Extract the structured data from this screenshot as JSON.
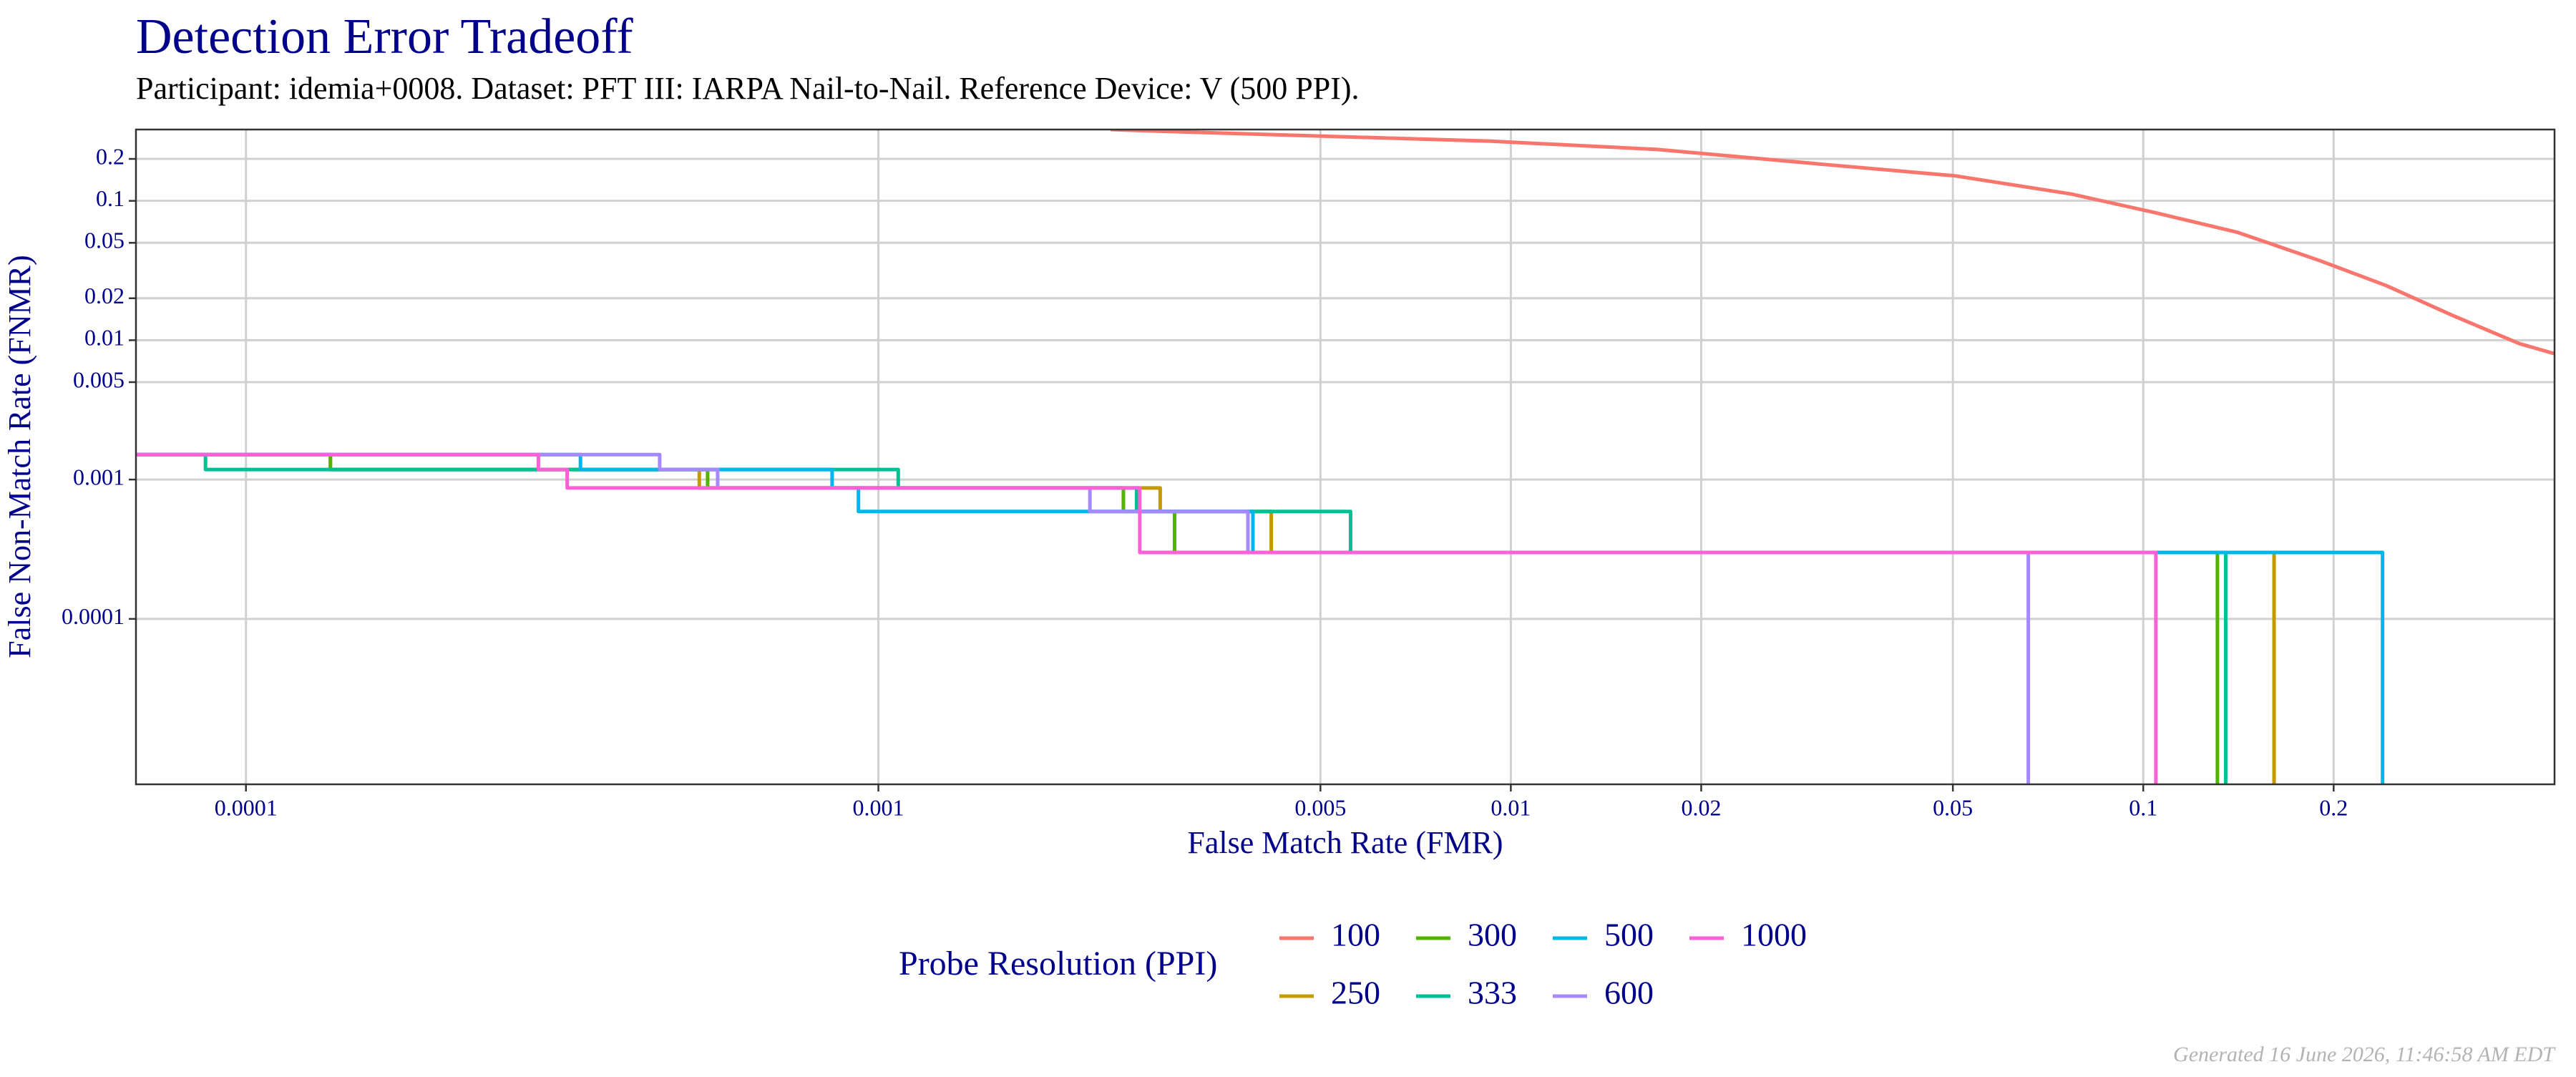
{
  "chart_data": {
    "type": "line",
    "title": "Detection Error Tradeoff",
    "subtitle": "Participant: idemia+0008. Dataset: PFT III: IARPA Nail-to-Nail. Reference Device: V (500 PPI).",
    "x_label": "False Match Rate (FMR)",
    "y_label": "False Non-Match Rate (FNMR)",
    "xscale": "log",
    "yscale": "log",
    "xlim": [
      6.7e-05,
      0.447
    ],
    "ylim": [
      6.5e-06,
      0.325
    ],
    "xticks": [
      0.0001,
      0.001,
      0.005,
      0.01,
      0.02,
      0.05,
      0.1,
      0.2
    ],
    "yticks": [
      0.0001,
      0.001,
      0.005,
      0.01,
      0.02,
      0.05,
      0.1,
      0.2
    ],
    "grid": true,
    "legend_title": "Probe Resolution (PPI)",
    "legend_position": "bottom",
    "footer": "Generated 16 June 2026, 11:46:58 AM EDT",
    "series": [
      {
        "name": "100",
        "color": "#F8766D",
        "x": [
          0.00233,
          0.00279,
          0.0051,
          0.0093,
          0.017,
          0.0311,
          0.0505,
          0.0769,
          0.104,
          0.141,
          0.19,
          0.242,
          0.308,
          0.393,
          0.447
        ],
        "values": [
          0.325,
          0.316,
          0.291,
          0.268,
          0.234,
          0.183,
          0.151,
          0.112,
          0.0826,
          0.0594,
          0.0373,
          0.0247,
          0.0151,
          0.00946,
          0.008
        ]
      },
      {
        "name": "250",
        "color": "#C49A00",
        "x": [
          6.7e-05,
          0.000136,
          0.000136,
          0.000521,
          0.000521,
          0.00279,
          0.00279,
          0.00418,
          0.00418,
          0.161,
          0.161
        ],
        "values": [
          0.00151,
          0.00151,
          0.00118,
          0.00118,
          0.00087,
          0.00087,
          0.00059,
          0.00059,
          0.0003,
          0.0003,
          6.5e-06
        ]
      },
      {
        "name": "300",
        "color": "#53B400",
        "x": [
          6.7e-05,
          0.000136,
          0.000136,
          0.000537,
          0.000537,
          0.00244,
          0.00244,
          0.00294,
          0.00294,
          0.131,
          0.131
        ],
        "values": [
          0.00151,
          0.00151,
          0.00118,
          0.00118,
          0.00087,
          0.00087,
          0.00059,
          0.00059,
          0.0003,
          0.0003,
          6.5e-06
        ]
      },
      {
        "name": "333",
        "color": "#00C094",
        "x": [
          6.7e-05,
          8.63e-05,
          8.63e-05,
          0.001075,
          0.001075,
          0.00256,
          0.00256,
          0.00558,
          0.00558,
          0.135,
          0.135
        ],
        "values": [
          0.00151,
          0.00151,
          0.00118,
          0.00118,
          0.00087,
          0.00087,
          0.00059,
          0.00059,
          0.0003,
          0.0003,
          6.5e-06
        ]
      },
      {
        "name": "500",
        "color": "#00B6EB",
        "x": [
          6.7e-05,
          0.000338,
          0.000338,
          0.000845,
          0.000845,
          0.00093,
          0.00093,
          0.00391,
          0.00391,
          0.239,
          0.239
        ],
        "values": [
          0.00151,
          0.00151,
          0.00118,
          0.00118,
          0.00087,
          0.00087,
          0.00059,
          0.00059,
          0.0003,
          0.0003,
          6.5e-06
        ]
      },
      {
        "name": "600",
        "color": "#A58AFF",
        "x": [
          6.7e-05,
          0.000451,
          0.000451,
          0.000557,
          0.000557,
          0.00216,
          0.00216,
          0.00384,
          0.00384,
          0.0658,
          0.0658
        ],
        "values": [
          0.00151,
          0.00151,
          0.00118,
          0.00118,
          0.00087,
          0.00087,
          0.00059,
          0.00059,
          0.0003,
          0.0003,
          6.5e-06
        ]
      },
      {
        "name": "1000",
        "color": "#FB61D7",
        "x": [
          6.7e-05,
          0.00029,
          0.00029,
          0.000322,
          0.000322,
          0.00259,
          0.00259,
          0.1047,
          0.1047
        ],
        "values": [
          0.00151,
          0.00151,
          0.00118,
          0.00118,
          0.00087,
          0.00087,
          0.0003,
          0.0003,
          6.5e-06
        ]
      }
    ]
  }
}
